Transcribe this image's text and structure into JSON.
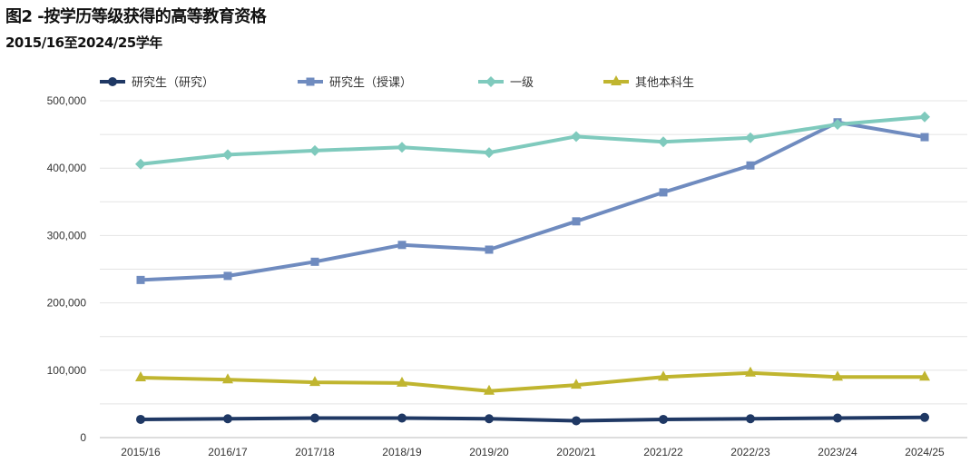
{
  "title": "图2 -按学历等级获得的高等教育资格",
  "subtitle": "2015/16至2024/25学年",
  "chart_data": {
    "type": "line",
    "title": "图2 -按学历等级获得的高等教育资格",
    "subtitle": "2015/16至2024/25学年",
    "categories": [
      "2015/16",
      "2016/17",
      "2017/18",
      "2018/19",
      "2019/20",
      "2020/21",
      "2021/22",
      "2022/23",
      "2023/24",
      "2024/25"
    ],
    "ylim": [
      0,
      500000
    ],
    "yticks": [
      0,
      100000,
      200000,
      300000,
      400000,
      500000
    ],
    "ytick_labels": [
      "0",
      "100,000",
      "200,000",
      "300,000",
      "400,000",
      "500,000"
    ],
    "grid": true,
    "legend_position": "top",
    "series": [
      {
        "name": "研究生（研究）",
        "color": "#1f3864",
        "marker": "circle",
        "values": [
          27000,
          28000,
          29000,
          29000,
          28000,
          25000,
          27000,
          28000,
          29000,
          30000
        ]
      },
      {
        "name": "研究生（授课）",
        "color": "#6f8bbf",
        "marker": "square",
        "values": [
          234000,
          240000,
          261000,
          286000,
          279000,
          321000,
          364000,
          404000,
          468000,
          446000
        ]
      },
      {
        "name": "一级",
        "color": "#7fcabd",
        "marker": "diamond",
        "values": [
          406000,
          420000,
          426000,
          431000,
          423000,
          447000,
          439000,
          445000,
          465000,
          476000
        ]
      },
      {
        "name": "其他本科生",
        "color": "#c0b52f",
        "marker": "triangle",
        "values": [
          89000,
          86000,
          82000,
          81000,
          69000,
          78000,
          90000,
          96000,
          90000,
          90000
        ]
      }
    ]
  }
}
